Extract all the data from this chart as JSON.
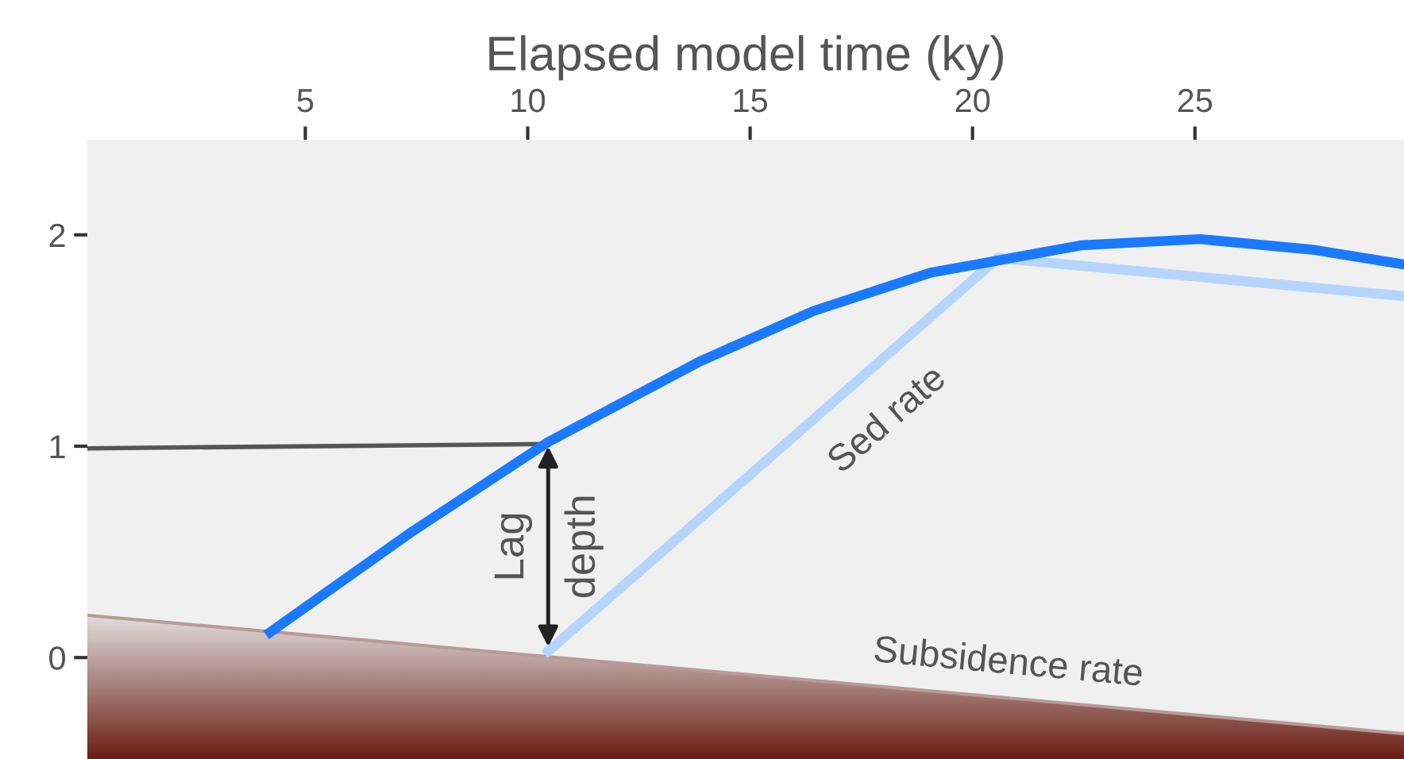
{
  "chart_data": {
    "type": "line",
    "xlabel": "Elapsed model time (ky)",
    "xlim": [
      0.1,
      29.7
    ],
    "xticks": [
      5,
      10,
      15,
      20,
      25
    ],
    "ylim": [
      -0.48,
      2.45
    ],
    "yticks": [
      0,
      1,
      2
    ],
    "grid": false,
    "marker": "none",
    "line_style": "solid",
    "series": [
      {
        "name": "Subsidence rate",
        "color": "#b89a96",
        "x": [
          0.1,
          29.7
        ],
        "values": [
          0.2,
          -0.36
        ]
      },
      {
        "color": "#1a7aff",
        "x": [
          4.21,
          7.36,
          10.46,
          13.86,
          16.43,
          19.04,
          22.43,
          25.1,
          27.64,
          29.7
        ],
        "values": [
          0.12,
          0.59,
          1.02,
          1.4,
          1.64,
          1.82,
          1.95,
          1.98,
          1.93,
          1.86
        ]
      },
      {
        "name": "Sed rate",
        "color": "#b5d5ff",
        "x": [
          10.46,
          20.57,
          29.7
        ],
        "values": [
          0.03,
          1.89,
          1.71
        ]
      },
      {
        "color": "#555555",
        "x": [
          0.1,
          10.46
        ],
        "values": [
          0.99,
          1.01
        ]
      }
    ],
    "annotations": [
      "Lag",
      "depth"
    ]
  }
}
